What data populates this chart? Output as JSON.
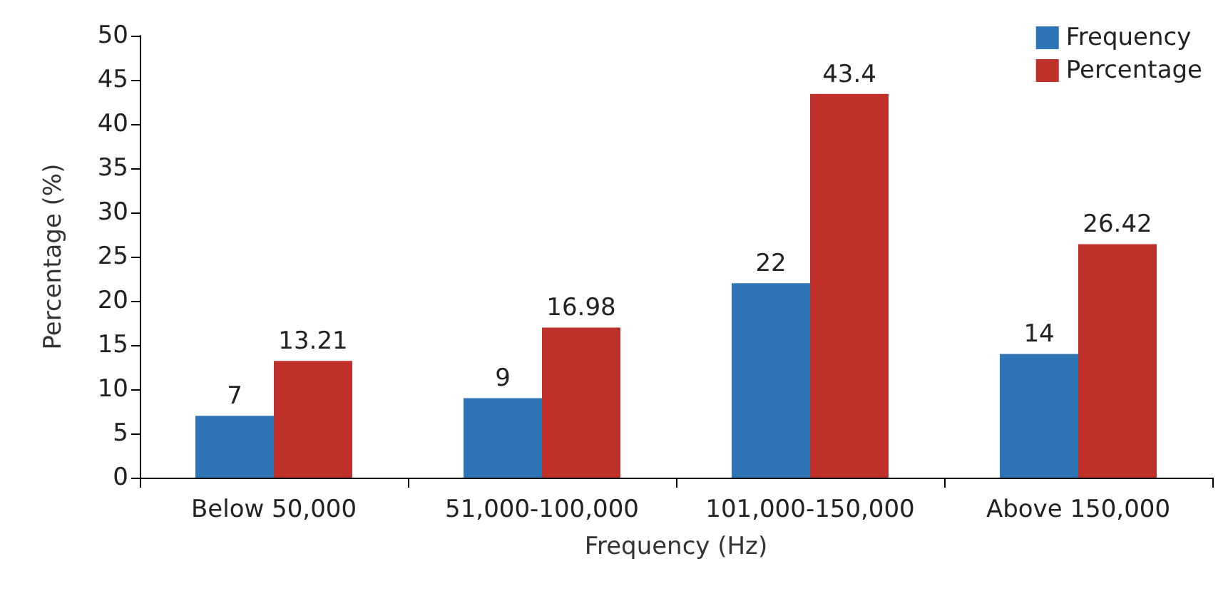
{
  "chart_data": {
    "type": "bar",
    "xlabel": "Frequency (Hz)",
    "ylabel": "Percentage (%)",
    "categories": [
      "Below 50,000",
      "51,000-100,000",
      "101,000-150,000",
      "Above 150,000"
    ],
    "series": [
      {
        "name": "Frequency",
        "color": "#2e75b6",
        "values": [
          7,
          9,
          22,
          14
        ]
      },
      {
        "name": "Percentage",
        "color": "#c0302b",
        "values": [
          13.21,
          16.98,
          43.4,
          26.42
        ]
      }
    ],
    "ylim": [
      0,
      50
    ],
    "yticks": [
      0,
      5,
      10,
      15,
      20,
      25,
      30,
      35,
      40,
      45,
      50
    ],
    "grid": false,
    "legend": "top right",
    "data_labels": true
  }
}
